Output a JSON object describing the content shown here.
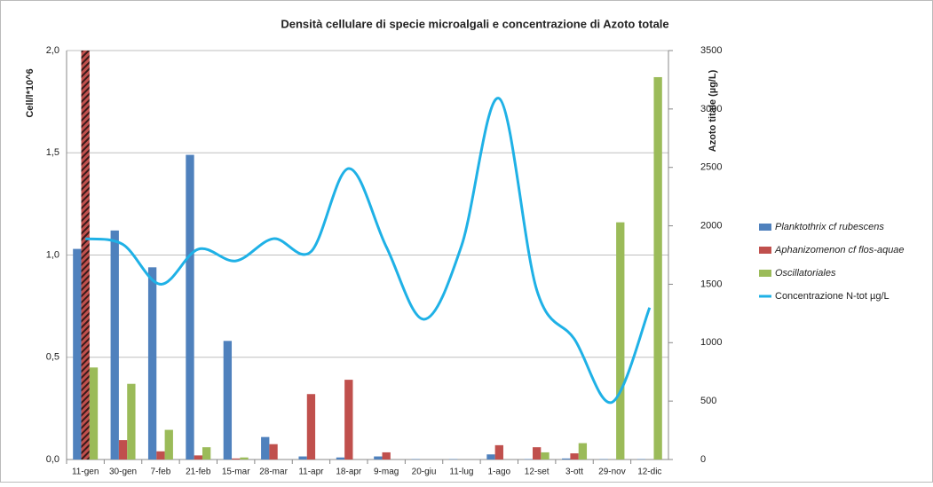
{
  "chart_data": {
    "type": "bar_line",
    "title": "Densità cellulare di specie microalgali e concentrazione di Azoto totale",
    "ylabel": "Cell/l*10^6",
    "y2label": "Azoto titale (µg/L)",
    "categories": [
      "11-gen",
      "30-gen",
      "7-feb",
      "21-feb",
      "15-mar",
      "28-mar",
      "11-apr",
      "18-apr",
      "9-mag",
      "20-giu",
      "11-lug",
      "1-ago",
      "12-set",
      "3-ott",
      "29-nov",
      "12-dic"
    ],
    "series": [
      {
        "name": "Planktothrix cf rubescens",
        "color": "#4f81bd",
        "italic": true,
        "type": "bar",
        "values": [
          1.03,
          1.12,
          0.94,
          1.49,
          0.58,
          0.11,
          0.015,
          0.01,
          0.015,
          0.002,
          0.002,
          0.025,
          0.002,
          0.005,
          0.002,
          0.002
        ]
      },
      {
        "name": "Aphanizomenon cf flos-aquae",
        "color": "#c0504d",
        "italic": true,
        "type": "bar",
        "values": [
          2.0,
          0.095,
          0.04,
          0.02,
          0.005,
          0.075,
          0.32,
          0.39,
          0.035,
          0,
          0,
          0.07,
          0.06,
          0.03,
          0,
          0
        ]
      },
      {
        "name": "Oscillatoriales",
        "color": "#9bbb59",
        "italic": true,
        "type": "bar",
        "values": [
          0.45,
          0.37,
          0.145,
          0.06,
          0.01,
          0,
          0,
          0,
          0,
          0,
          0,
          0,
          0.035,
          0.08,
          1.16,
          1.87
        ]
      },
      {
        "name": "Concentrazione N-tot µg/L",
        "color": "#1fb1e6",
        "italic": false,
        "type": "line",
        "axis": "y2",
        "values": [
          1890,
          1840,
          1500,
          1800,
          1700,
          1890,
          1780,
          2490,
          1820,
          1200,
          1830,
          3090,
          1450,
          1030,
          490,
          1300
        ]
      }
    ],
    "ylim": [
      0,
      2.0
    ],
    "yticks": [
      {
        "value": 0,
        "label": "0,0"
      },
      {
        "value": 0.5,
        "label": "0,5"
      },
      {
        "value": 1,
        "label": "1,0"
      },
      {
        "value": 1.5,
        "label": "1,5"
      },
      {
        "value": 2,
        "label": "2,0"
      }
    ],
    "y2lim": [
      0,
      3500
    ],
    "y2ticks": [
      0,
      500,
      1000,
      1500,
      2000,
      2500,
      3000,
      3500
    ],
    "grid": true,
    "legend": "right"
  }
}
